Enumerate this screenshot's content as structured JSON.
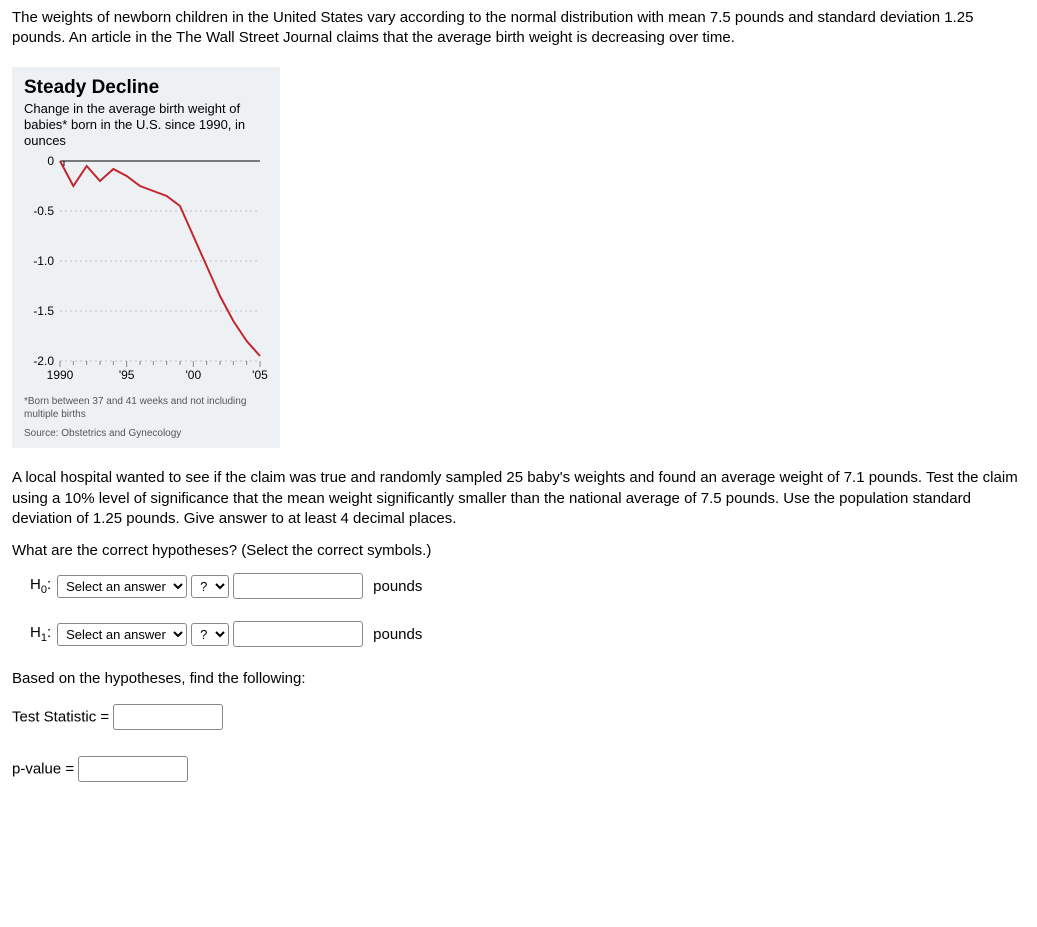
{
  "intro": "The weights of newborn children in the United States vary according to the normal distribution with mean 7.5 pounds and standard deviation 1.25 pounds. An article in the The Wall Street Journal claims that the average birth weight is decreasing over time.",
  "figure": {
    "title": "Steady Decline",
    "subtitle": "Change in the average birth weight of babies* born in the U.S. since 1990, in ounces",
    "footnote1": "*Born between 37 and 41 weeks and not including multiple births",
    "footnote2": "Source: Obstetrics and Gynecology",
    "chart": {
      "type": "line",
      "background_color": "#eef1f4",
      "plot_background": "#eef1f4",
      "line_color": "#c1272d",
      "line_width": 2,
      "grid_color": "#bfbfbf",
      "axis_color": "#000000",
      "tick_fontsize": 12,
      "ylim": [
        -2.0,
        0
      ],
      "yticks": [
        0,
        -0.5,
        -1.0,
        -1.5,
        -2.0
      ],
      "ytick_labels": [
        "0",
        "-0.5",
        "-1.0",
        "-1.5",
        "-2.0"
      ],
      "xlim": [
        1990,
        2005
      ],
      "xticks": [
        1990,
        1995,
        2000,
        2005
      ],
      "xtick_labels": [
        "1990",
        "'95",
        "'00",
        "'05"
      ],
      "data_x": [
        1990,
        1991,
        1992,
        1993,
        1994,
        1995,
        1996,
        1997,
        1998,
        1999,
        2000,
        2001,
        2002,
        2003,
        2004,
        2005
      ],
      "data_y": [
        0.0,
        -0.25,
        -0.05,
        -0.2,
        -0.08,
        -0.15,
        -0.25,
        -0.3,
        -0.35,
        -0.45,
        -0.75,
        -1.05,
        -1.35,
        -1.6,
        -1.8,
        -1.95
      ]
    }
  },
  "mid": "A local hospital wanted to see if the claim was true and randomly sampled 25 baby's weights and found an average weight of 7.1 pounds. Test the claim using a 10% level of significance that the mean weight significantly smaller than the national average of 7.5 pounds. Use the population standard deviation of 1.25 pounds. Give answer to at least 4 decimal places.",
  "q1": "What are the correct hypotheses? (Select the correct symbols.)",
  "h0": {
    "label_pre": "H",
    "label_sub": "0",
    "label_post": ":",
    "param_placeholder": "Select an answer",
    "op_placeholder": "?",
    "value": "",
    "units": "pounds"
  },
  "h1": {
    "label_pre": "H",
    "label_sub": "1",
    "label_post": ":",
    "param_placeholder": "Select an answer",
    "op_placeholder": "?",
    "value": "",
    "units": "pounds"
  },
  "q2": "Based on the hypotheses, find the following:",
  "ts": {
    "label": "Test Statistic =",
    "value": ""
  },
  "pv": {
    "label": "p-value =",
    "value": ""
  }
}
